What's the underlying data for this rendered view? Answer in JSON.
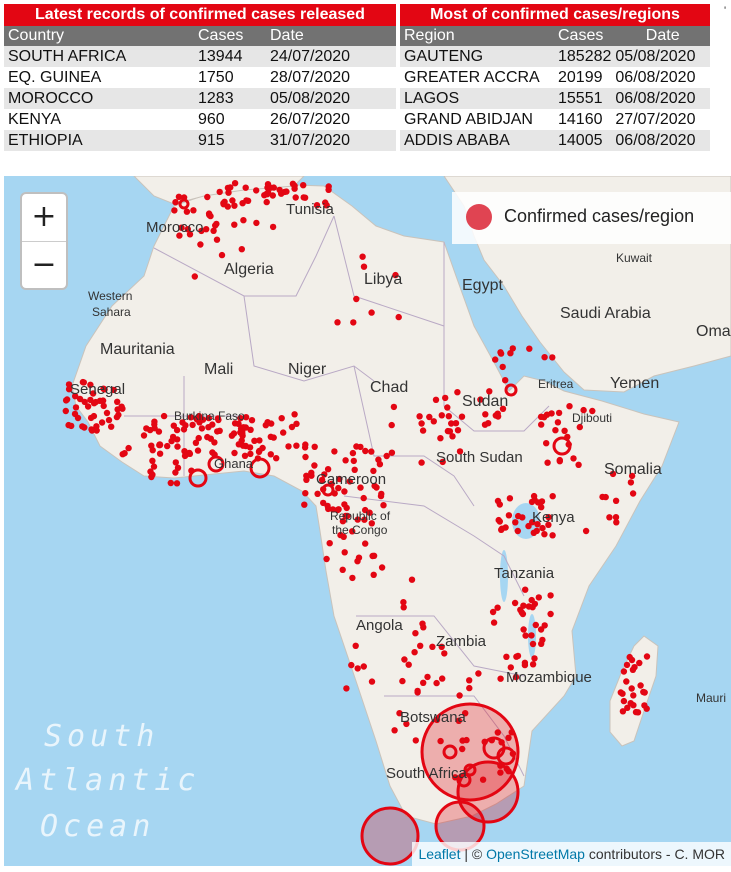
{
  "records_table": {
    "title": "Latest records of confirmed cases released",
    "columns": [
      "Country",
      "Cases",
      "Date"
    ],
    "rows": [
      [
        "SOUTH AFRICA",
        "13944",
        "24/07/2020"
      ],
      [
        "EQ. GUINEA",
        "1750",
        "28/07/2020"
      ],
      [
        "MOROCCO",
        "1283",
        "05/08/2020"
      ],
      [
        "KENYA",
        "960",
        "26/07/2020"
      ],
      [
        "ETHIOPIA",
        "915",
        "31/07/2020"
      ]
    ]
  },
  "regions_table": {
    "title": "Most of confirmed cases/regions",
    "columns": [
      "Region",
      "Cases",
      "Date"
    ],
    "rows": [
      [
        "GAUTENG",
        "185282",
        "05/08/2020"
      ],
      [
        "GREATER ACCRA",
        "20199",
        "06/08/2020"
      ],
      [
        "LAGOS",
        "15551",
        "06/08/2020"
      ],
      [
        "GRAND ABIDJAN",
        "14160",
        "27/07/2020"
      ],
      [
        "ADDIS ABABA",
        "14005",
        "06/08/2020"
      ]
    ]
  },
  "corner_mark": "'",
  "map": {
    "zoom_in_label": "+",
    "zoom_out_label": "−",
    "legend_label": "Confirmed cases/region",
    "marker_color": "#e30613",
    "labels": {
      "morocco": "Morocco",
      "tunisia": "Tunisia",
      "algeria": "Algeria",
      "libya": "Libya",
      "egypt": "Egypt",
      "kuwait": "Kuwait",
      "western_sahara_1": "Western",
      "western_sahara_2": "Sahara",
      "saudi_arabia": "Saudi Arabia",
      "oman": "Oma",
      "mauritania": "Mauritania",
      "mali": "Mali",
      "niger": "Niger",
      "chad": "Chad",
      "sudan": "Sudan",
      "eritrea": "Eritrea",
      "yemen": "Yemen",
      "senegal": "Senegal",
      "burkina_faso": "Burkina Faso",
      "djibouti": "Djibouti",
      "ghana": "Ghana",
      "south_sudan": "South Sudan",
      "somalia": "Somalia",
      "cameroon": "Cameroon",
      "roc_1": "Republic of",
      "roc_2": "the Congo",
      "kenya": "Kenya",
      "tanzania": "Tanzania",
      "angola": "Angola",
      "zambia": "Zambia",
      "mozambique": "Mozambique",
      "botswana": "Botswana",
      "south_africa": "South Africa",
      "mauritius": "Mauri",
      "ocean_1": "South",
      "ocean_2": "Atlantic",
      "ocean_3": "Ocean"
    },
    "attribution": {
      "leaflet": "Leaflet",
      "sep": " | © ",
      "osm": "OpenStreetMap",
      "rest": " contributors - C. MOR"
    }
  }
}
